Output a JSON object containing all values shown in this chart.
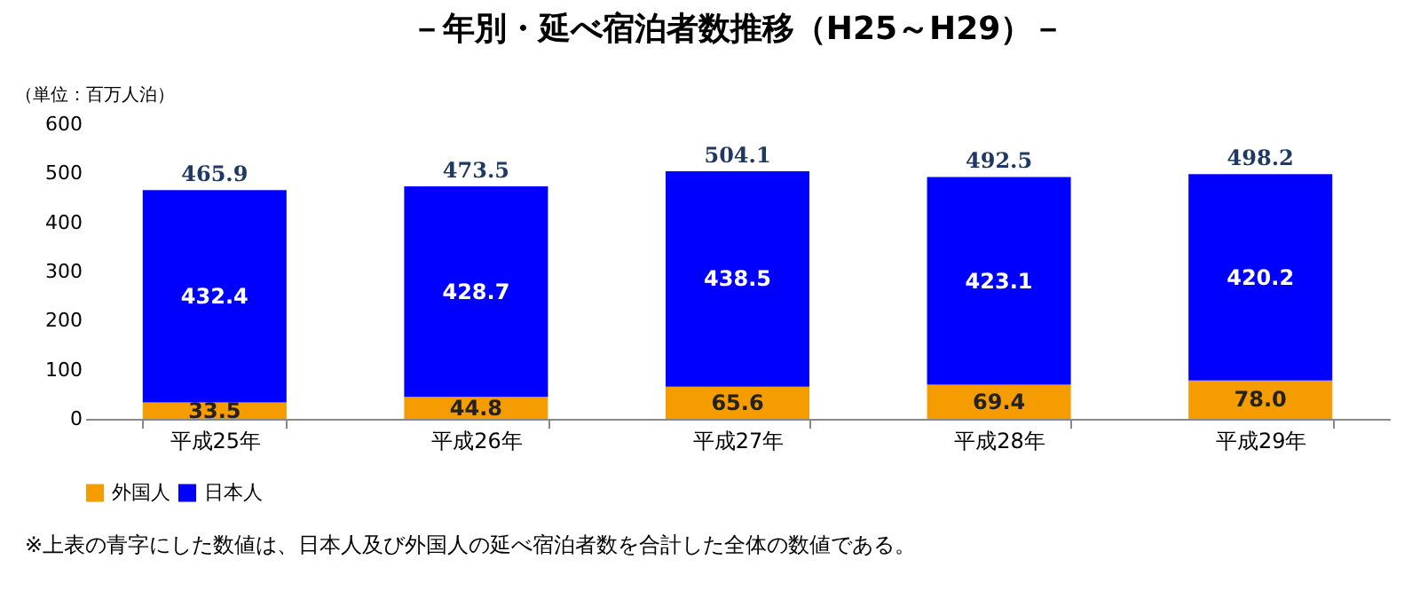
{
  "chart_data": {
    "type": "bar",
    "title": "－年別・延べ宿泊者数推移（H25～H29）－",
    "ylabel": "（単位：百万人泊）",
    "categories": [
      "平成25年",
      "平成26年",
      "平成27年",
      "平成28年",
      "平成29年"
    ],
    "stacked": true,
    "series": [
      {
        "name": "外国人",
        "color": "#f59c00",
        "values": [
          33.5,
          44.8,
          65.6,
          69.4,
          78.0
        ],
        "value_labels": [
          "33.5",
          "44.8",
          "65.6",
          "69.4",
          "78.0"
        ]
      },
      {
        "name": "日本人",
        "color": "#0000ff",
        "values": [
          432.4,
          428.7,
          438.5,
          423.1,
          420.2
        ],
        "value_labels": [
          "432.4",
          "428.7",
          "438.5",
          "423.1",
          "420.2"
        ]
      }
    ],
    "totals": [
      "465.9",
      "473.5",
      "504.1",
      "492.5",
      "498.2"
    ],
    "ylim": [
      0,
      600
    ],
    "yticks": [
      0,
      100,
      200,
      300,
      400,
      500,
      600
    ],
    "grid": false,
    "legend": "bottom",
    "annotations": [
      "※上表の青字にした数値は、日本人及び外国人の延べ宿泊者数を合計した全体の数値である。"
    ]
  }
}
